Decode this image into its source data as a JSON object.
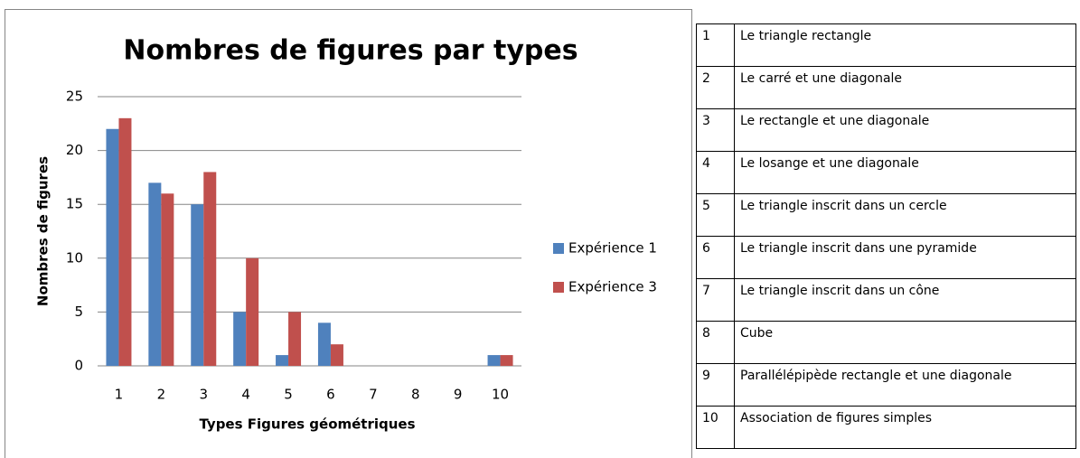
{
  "chart_data": {
    "type": "bar",
    "title": "Nombres de figures par types",
    "x_label": "Types Figures géométriques",
    "y_label": "Nombres de figures",
    "categories": [
      "1",
      "2",
      "3",
      "4",
      "5",
      "6",
      "7",
      "8",
      "9",
      "10"
    ],
    "series": [
      {
        "name": "Expérience 1",
        "color": "#4f81bd",
        "values": [
          22,
          17,
          15,
          5,
          1,
          4,
          0,
          0,
          0,
          1
        ]
      },
      {
        "name": "Expérience 3",
        "color": "#c0504d",
        "values": [
          23,
          16,
          18,
          10,
          5,
          2,
          0,
          0,
          0,
          1
        ]
      }
    ],
    "ylim": [
      0,
      25
    ],
    "yticks": [
      0,
      5,
      10,
      15,
      20,
      25
    ],
    "grid": true,
    "legend": "right"
  },
  "table": {
    "rows": [
      [
        "1",
        "Le triangle rectangle"
      ],
      [
        "2",
        "Le carré et une diagonale"
      ],
      [
        "3",
        "Le rectangle et une diagonale"
      ],
      [
        "4",
        "Le losange et une diagonale"
      ],
      [
        "5",
        "Le triangle inscrit dans un cercle"
      ],
      [
        "6",
        "Le triangle inscrit dans une pyramide"
      ],
      [
        "7",
        "Le triangle inscrit dans un cône"
      ],
      [
        "8",
        "Cube"
      ],
      [
        "9",
        "Parallélépipède rectangle et une diagonale"
      ],
      [
        "10",
        "Association de figures simples"
      ]
    ]
  }
}
